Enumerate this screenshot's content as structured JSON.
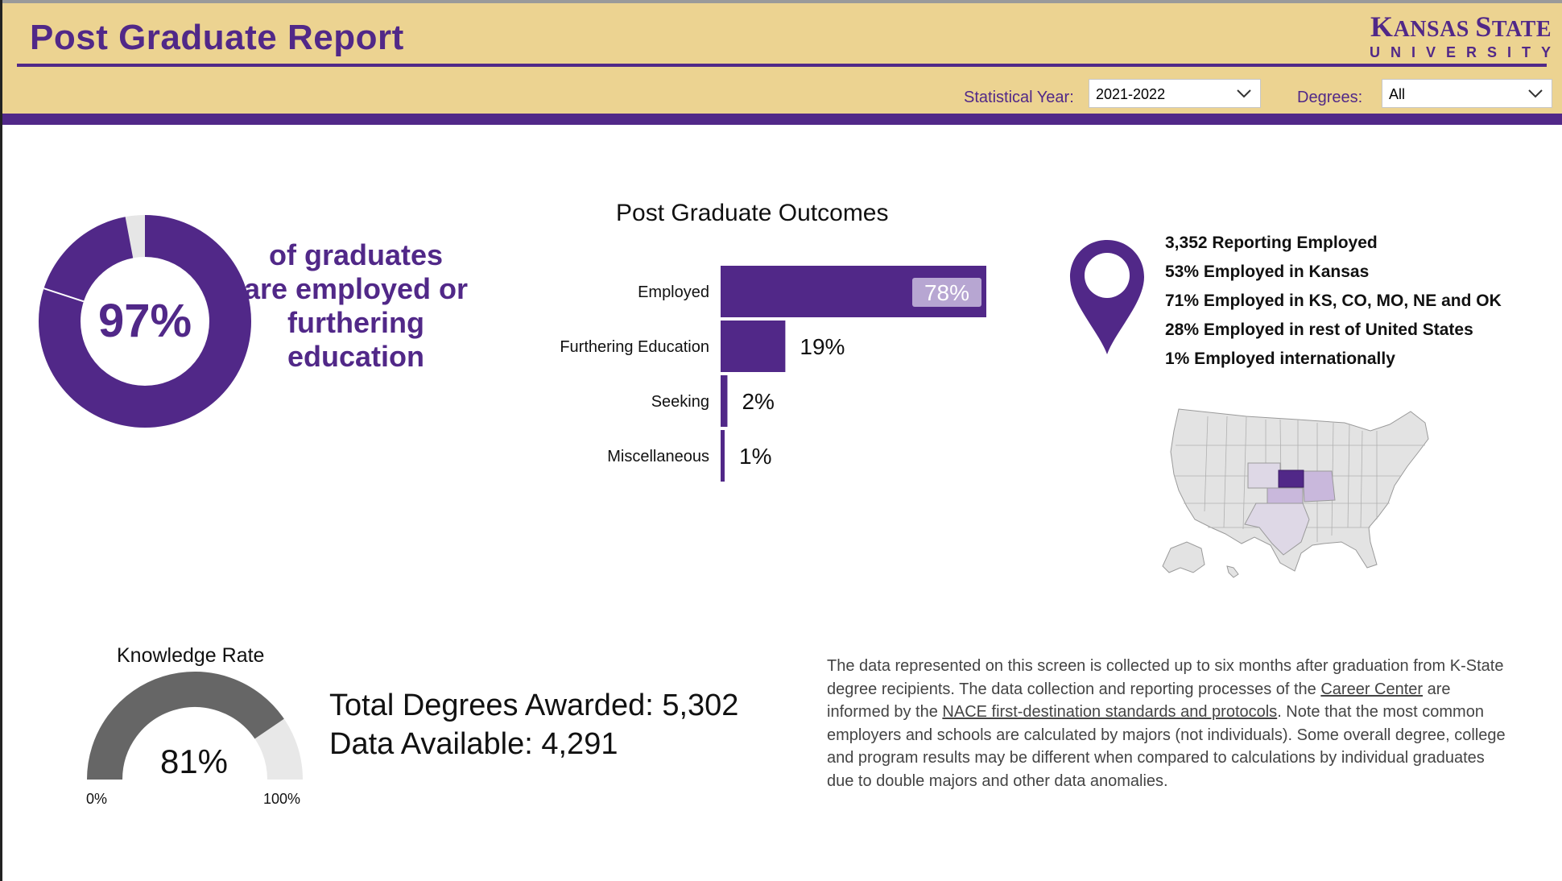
{
  "header": {
    "title": "Post Graduate Report",
    "logo_line1_big1": "K",
    "logo_line1_small1": "ANSAS ",
    "logo_line1_big2": "S",
    "logo_line1_small2": "TATE",
    "logo_line2": "UNIVERSITY",
    "brand_color": "#512888",
    "header_bg": "#ecd391"
  },
  "filters": {
    "year_label": "Statistical Year:",
    "year_value": "2021-2022",
    "degrees_label": "Degrees:",
    "degrees_value": "All"
  },
  "summary": {
    "percent": "97%",
    "percent_value": 97,
    "text": "of graduates are employed or furthering education"
  },
  "chart_data": {
    "type": "bar",
    "title": "Post Graduate Outcomes",
    "categories": [
      "Employed",
      "Furthering Education",
      "Seeking",
      "Miscellaneous"
    ],
    "values": [
      78,
      19,
      2,
      1
    ],
    "labels": [
      "78%",
      "19%",
      "2%",
      "1%"
    ],
    "orientation": "horizontal",
    "color": "#512888"
  },
  "location": {
    "stats": [
      "3,352 Reporting Employed",
      "53% Employed in Kansas",
      "71% Employed in KS, CO, MO, NE and OK",
      "28% Employed in rest of United States",
      "1% Employed internationally"
    ],
    "icon": "map-pin-icon"
  },
  "gauge": {
    "title": "Knowledge Rate",
    "value_label": "81%",
    "value": 81,
    "min_label": "0%",
    "max_label": "100%"
  },
  "totals": {
    "degrees_awarded": "Total Degrees Awarded: 5,302",
    "data_available": "Data Available: 4,291"
  },
  "note": {
    "part1": "The data represented on this screen is collected up to six months after graduation from K-State degree recipients. The data collection and reporting processes of the ",
    "link1": "Career Center",
    "part2": " are informed by the ",
    "link2": "NACE first-destination standards and protocols",
    "part3": ". Note that the most common employers and schools are calculated by majors (not individuals). Some overall degree, college and program results may be different when compared to calculations by individual graduates due to double majors and other data anomalies."
  }
}
